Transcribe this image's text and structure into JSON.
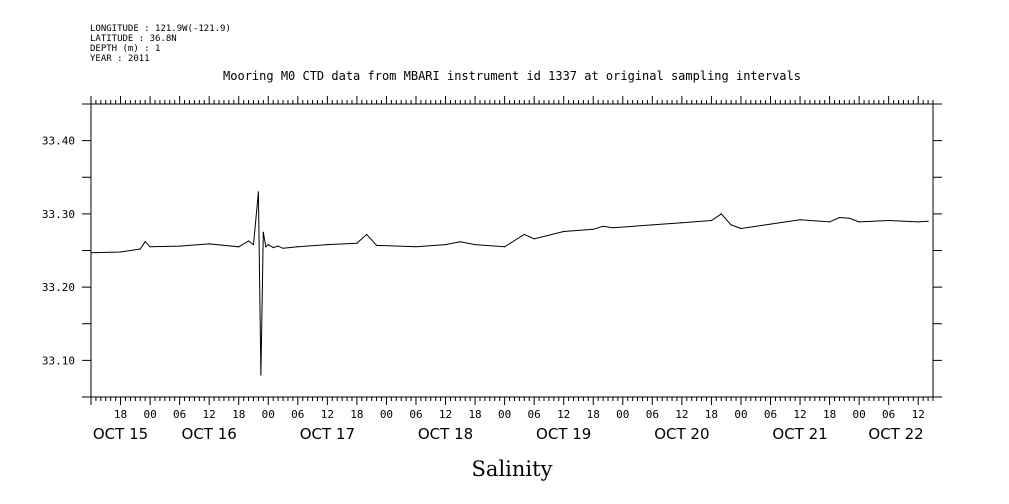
{
  "header": {
    "longitude": "LONGITUDE : 121.9W(-121.9)",
    "latitude": "LATITUDE : 36.8N",
    "depth": "DEPTH (m) : 1",
    "year": "YEAR : 2011"
  },
  "chart_data": {
    "type": "line",
    "title": "Mooring M0 CTD data from MBARI instrument id 1337 at original sampling intervals",
    "xlabel": "Salinity",
    "ylabel": "",
    "xlim": [
      "2011-10-15T12:00",
      "2011-10-22T15:00"
    ],
    "ylim": [
      33.05,
      33.45
    ],
    "grid": false,
    "y_ticks": [
      "33.10",
      "33.20",
      "33.30",
      "33.40"
    ],
    "x_hour_ticks": [
      "18",
      "00",
      "06",
      "12",
      "18",
      "00",
      "06",
      "12",
      "18",
      "00",
      "06",
      "12",
      "18",
      "00",
      "06",
      "12",
      "18",
      "00",
      "06",
      "12",
      "18",
      "00",
      "06",
      "12",
      "18",
      "00",
      "06",
      "12"
    ],
    "x_day_labels": [
      "OCT 15",
      "OCT 16",
      "OCT 17",
      "OCT 18",
      "OCT 19",
      "OCT 20",
      "OCT 21",
      "OCT 22"
    ],
    "series": [
      {
        "color": "#000000",
        "x": [
          "2011-10-15T12:00",
          "2011-10-15T18:00",
          "2011-10-15T22:00",
          "2011-10-15T23:00",
          "2011-10-16T00:00",
          "2011-10-16T06:00",
          "2011-10-16T12:00",
          "2011-10-16T18:00",
          "2011-10-16T20:00",
          "2011-10-16T21:00",
          "2011-10-16T22:00",
          "2011-10-16T22:30",
          "2011-10-16T23:00",
          "2011-10-16T23:30",
          "2011-10-17T00:00",
          "2011-10-17T01:00",
          "2011-10-17T02:00",
          "2011-10-17T03:00",
          "2011-10-17T06:00",
          "2011-10-17T12:00",
          "2011-10-17T18:00",
          "2011-10-17T20:00",
          "2011-10-17T22:00",
          "2011-10-18T06:00",
          "2011-10-18T12:00",
          "2011-10-18T15:00",
          "2011-10-18T18:00",
          "2011-10-19T00:00",
          "2011-10-19T04:00",
          "2011-10-19T06:00",
          "2011-10-19T12:00",
          "2011-10-19T18:00",
          "2011-10-19T20:00",
          "2011-10-19T22:00",
          "2011-10-20T06:00",
          "2011-10-20T12:00",
          "2011-10-20T18:00",
          "2011-10-20T20:00",
          "2011-10-20T22:00",
          "2011-10-21T00:00",
          "2011-10-21T06:00",
          "2011-10-21T12:00",
          "2011-10-21T18:00",
          "2011-10-21T20:00",
          "2011-10-21T22:00",
          "2011-10-22T00:00",
          "2011-10-22T06:00",
          "2011-10-22T12:00",
          "2011-10-22T14:00"
        ],
        "values": [
          33.247,
          33.248,
          33.252,
          33.262,
          33.255,
          33.256,
          33.259,
          33.255,
          33.263,
          33.258,
          33.33,
          33.08,
          33.275,
          33.255,
          33.258,
          33.254,
          33.256,
          33.253,
          33.255,
          33.258,
          33.26,
          33.272,
          33.257,
          33.255,
          33.258,
          33.262,
          33.258,
          33.255,
          33.272,
          33.266,
          33.276,
          33.279,
          33.283,
          33.281,
          33.285,
          33.288,
          33.291,
          33.3,
          33.285,
          33.28,
          33.286,
          33.292,
          33.289,
          33.295,
          33.294,
          33.289,
          33.291,
          33.289,
          33.29
        ]
      }
    ]
  }
}
